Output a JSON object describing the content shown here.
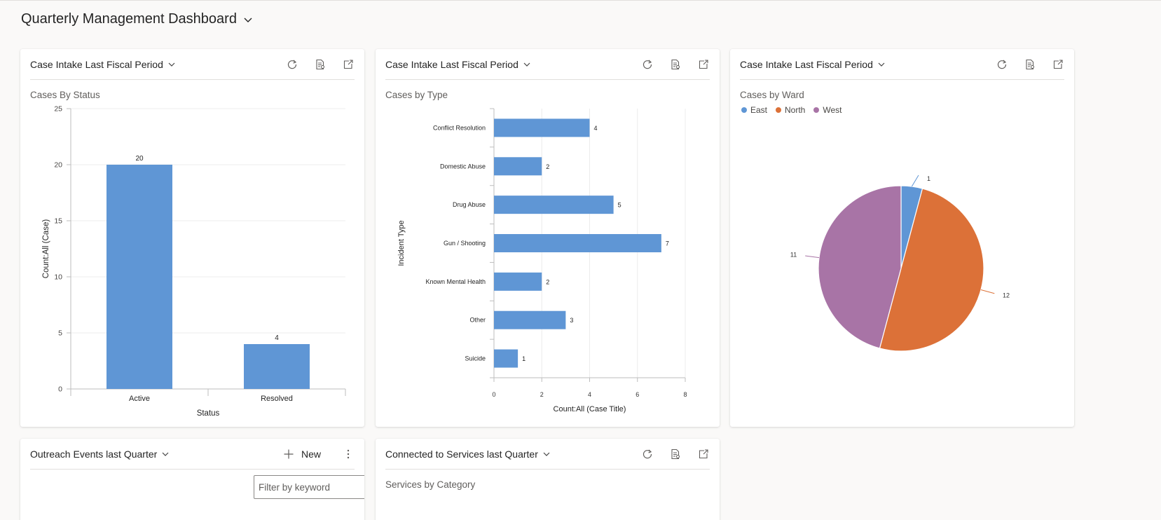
{
  "dashboard": {
    "title": "Quarterly Management Dashboard"
  },
  "cards": [
    {
      "header": "Case Intake Last Fiscal Period",
      "chart_title": "Cases By Status"
    },
    {
      "header": "Case Intake Last Fiscal Period",
      "chart_title": "Cases by Type"
    },
    {
      "header": "Case Intake Last Fiscal Period",
      "chart_title": "Cases by Ward",
      "legend": [
        "East",
        "North",
        "West"
      ]
    }
  ],
  "bottom_cards": [
    {
      "header": "Outreach Events last Quarter",
      "new_label": "New",
      "filter_placeholder": "Filter by keyword"
    },
    {
      "header": "Connected to Services last Quarter",
      "chart_title": "Services by Category"
    }
  ],
  "icons": [
    "refresh-icon",
    "view-records-icon",
    "expand-icon",
    "chevron-down-icon",
    "add-icon",
    "more-icon"
  ],
  "colors": {
    "blue": "#5f96d5",
    "orange": "#dc7138",
    "purple": "#a874a6"
  },
  "chart_data": [
    {
      "type": "bar",
      "title": "Cases By Status",
      "categories": [
        "Active",
        "Resolved"
      ],
      "values": [
        20,
        4
      ],
      "xlabel": "Status",
      "ylabel": "Count:All (Case)",
      "ylim": [
        0,
        25
      ],
      "yticks": [
        0,
        5,
        10,
        15,
        20,
        25
      ],
      "grid": true
    },
    {
      "type": "bar",
      "orientation": "horizontal",
      "title": "Cases by Type",
      "categories": [
        "Conflict Resolution",
        "Domestic Abuse",
        "Drug Abuse",
        "Gun / Shooting",
        "Known Mental Health",
        "Other",
        "Suicide"
      ],
      "values": [
        4,
        2,
        5,
        7,
        2,
        3,
        1
      ],
      "xlabel": "Count:All (Case Title)",
      "ylabel": "Incident Type",
      "xlim": [
        0,
        8
      ],
      "xticks": [
        0,
        2,
        4,
        6,
        8
      ],
      "grid": true
    },
    {
      "type": "pie",
      "title": "Cases by Ward",
      "labels": [
        "East",
        "North",
        "West"
      ],
      "values": [
        1,
        12,
        11
      ],
      "legend": "top-left"
    }
  ]
}
